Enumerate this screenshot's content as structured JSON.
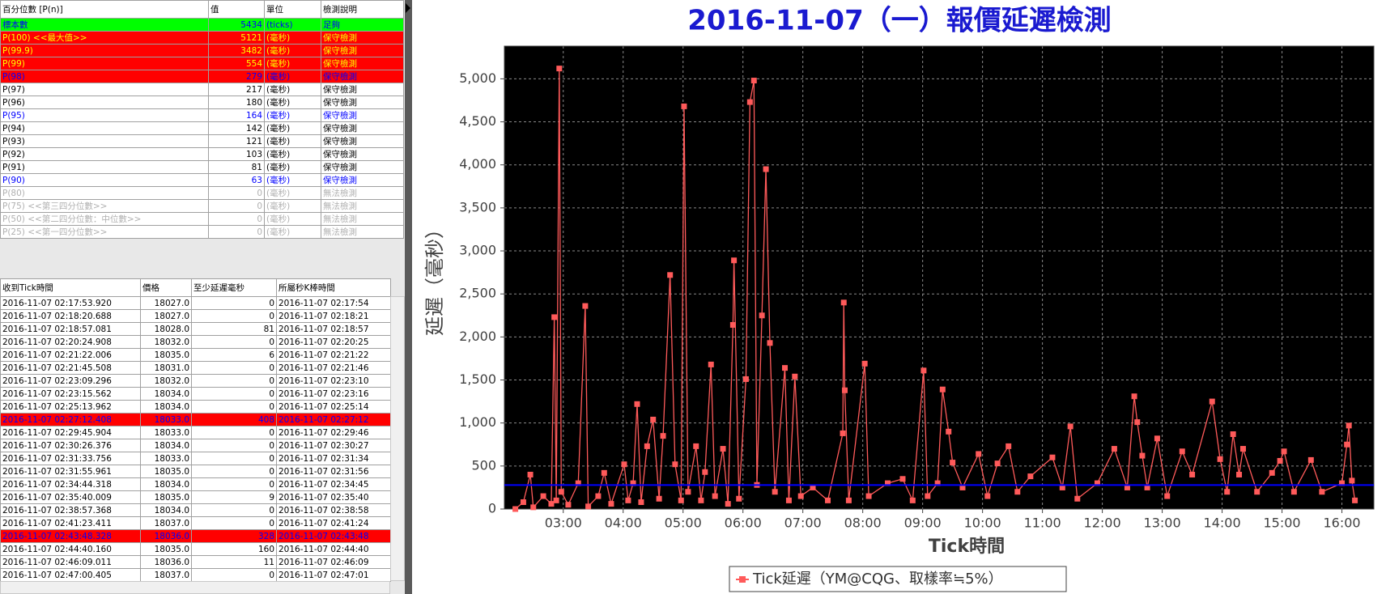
{
  "percentile_table": {
    "headers": [
      "百分位數 [P(n)]",
      "值",
      "單位",
      "檢測說明"
    ],
    "rows": [
      {
        "cells": [
          "標本數",
          "5434",
          "(ticks)",
          "足夠"
        ],
        "bg": "#00ff00",
        "fg": "#0000ff",
        "bold": false
      },
      {
        "cells": [
          "P(100)  <<最大值>>",
          "5121",
          "(毫秒)",
          "保守檢測"
        ],
        "bg": "#ff0000",
        "fg": "#ffff00",
        "bold": true
      },
      {
        "cells": [
          "P(99.9)",
          "3482",
          "(毫秒)",
          "保守檢測"
        ],
        "bg": "#ff0000",
        "fg": "#ffff00",
        "bold": true
      },
      {
        "cells": [
          "P(99)",
          "554",
          "(毫秒)",
          "保守檢測"
        ],
        "bg": "#ff0000",
        "fg": "#ffff00",
        "bold": true
      },
      {
        "cells": [
          "P(98)",
          "279",
          "(毫秒)",
          "保守檢測"
        ],
        "bg": "#ff0000",
        "fg": "#0000ff",
        "bold": false
      },
      {
        "cells": [
          "P(97)",
          "217",
          "(毫秒)",
          "保守檢測"
        ],
        "bg": "#ffffff",
        "fg": "#000000",
        "bold": false
      },
      {
        "cells": [
          "P(96)",
          "180",
          "(毫秒)",
          "保守檢測"
        ],
        "bg": "#ffffff",
        "fg": "#000000",
        "bold": false
      },
      {
        "cells": [
          "P(95)",
          "164",
          "(毫秒)",
          "保守檢測"
        ],
        "bg": "#ffffff",
        "fg": "#0000ff",
        "bold": true
      },
      {
        "cells": [
          "P(94)",
          "142",
          "(毫秒)",
          "保守檢測"
        ],
        "bg": "#ffffff",
        "fg": "#000000",
        "bold": false
      },
      {
        "cells": [
          "P(93)",
          "121",
          "(毫秒)",
          "保守檢測"
        ],
        "bg": "#ffffff",
        "fg": "#000000",
        "bold": false
      },
      {
        "cells": [
          "P(92)",
          "103",
          "(毫秒)",
          "保守檢測"
        ],
        "bg": "#ffffff",
        "fg": "#000000",
        "bold": false
      },
      {
        "cells": [
          "P(91)",
          "81",
          "(毫秒)",
          "保守檢測"
        ],
        "bg": "#ffffff",
        "fg": "#000000",
        "bold": false
      },
      {
        "cells": [
          "P(90)",
          "63",
          "(毫秒)",
          "保守檢測"
        ],
        "bg": "#ffffff",
        "fg": "#0000ff",
        "bold": true
      },
      {
        "cells": [
          "P(80)",
          "0",
          "(毫秒)",
          "無法檢測"
        ],
        "bg": "#ffffff",
        "fg": "#b0b0b0",
        "bold": false
      },
      {
        "cells": [
          "P(75)  <<第三四分位數>>",
          "0",
          "(毫秒)",
          "無法檢測"
        ],
        "bg": "#ffffff",
        "fg": "#b0b0b0",
        "bold": false
      },
      {
        "cells": [
          "P(50)  <<第二四分位數：中位數>>",
          "0",
          "(毫秒)",
          "無法檢測"
        ],
        "bg": "#ffffff",
        "fg": "#b0b0b0",
        "bold": false
      },
      {
        "cells": [
          "P(25)  <<第一四分位數>>",
          "0",
          "(毫秒)",
          "無法檢測"
        ],
        "bg": "#ffffff",
        "fg": "#b0b0b0",
        "bold": false
      }
    ]
  },
  "tick_table": {
    "headers": [
      "收到Tick時間",
      "價格",
      "至少延遲毫秒",
      "所屬秒K棒時間"
    ],
    "rows": [
      {
        "cells": [
          "2016-11-07 02:17:53.920",
          "18027.0",
          "0",
          "2016-11-07 02:17:54"
        ]
      },
      {
        "cells": [
          "2016-11-07 02:18:20.688",
          "18027.0",
          "0",
          "2016-11-07 02:18:21"
        ]
      },
      {
        "cells": [
          "2016-11-07 02:18:57.081",
          "18028.0",
          "81",
          "2016-11-07 02:18:57"
        ]
      },
      {
        "cells": [
          "2016-11-07 02:20:24.908",
          "18032.0",
          "0",
          "2016-11-07 02:20:25"
        ]
      },
      {
        "cells": [
          "2016-11-07 02:21:22.006",
          "18035.0",
          "6",
          "2016-11-07 02:21:22"
        ]
      },
      {
        "cells": [
          "2016-11-07 02:21:45.508",
          "18031.0",
          "0",
          "2016-11-07 02:21:46"
        ]
      },
      {
        "cells": [
          "2016-11-07 02:23:09.296",
          "18032.0",
          "0",
          "2016-11-07 02:23:10"
        ]
      },
      {
        "cells": [
          "2016-11-07 02:23:15.562",
          "18034.0",
          "0",
          "2016-11-07 02:23:16"
        ]
      },
      {
        "cells": [
          "2016-11-07 02:25:13.962",
          "18034.0",
          "0",
          "2016-11-07 02:25:14"
        ]
      },
      {
        "cells": [
          "2016-11-07 02:27:12.408",
          "18033.0",
          "408",
          "2016-11-07 02:27:12"
        ],
        "bg": "#ff0000",
        "fg": "#0000ff"
      },
      {
        "cells": [
          "2016-11-07 02:29:45.904",
          "18033.0",
          "0",
          "2016-11-07 02:29:46"
        ]
      },
      {
        "cells": [
          "2016-11-07 02:30:26.376",
          "18034.0",
          "0",
          "2016-11-07 02:30:27"
        ]
      },
      {
        "cells": [
          "2016-11-07 02:31:33.756",
          "18033.0",
          "0",
          "2016-11-07 02:31:34"
        ]
      },
      {
        "cells": [
          "2016-11-07 02:31:55.961",
          "18035.0",
          "0",
          "2016-11-07 02:31:56"
        ]
      },
      {
        "cells": [
          "2016-11-07 02:34:44.318",
          "18034.0",
          "0",
          "2016-11-07 02:34:45"
        ]
      },
      {
        "cells": [
          "2016-11-07 02:35:40.009",
          "18035.0",
          "9",
          "2016-11-07 02:35:40"
        ]
      },
      {
        "cells": [
          "2016-11-07 02:38:57.368",
          "18034.0",
          "0",
          "2016-11-07 02:38:58"
        ]
      },
      {
        "cells": [
          "2016-11-07 02:41:23.411",
          "18037.0",
          "0",
          "2016-11-07 02:41:24"
        ]
      },
      {
        "cells": [
          "2016-11-07 02:43:48.328",
          "18036.0",
          "328",
          "2016-11-07 02:43:48"
        ],
        "bg": "#ff0000",
        "fg": "#0000ff"
      },
      {
        "cells": [
          "2016-11-07 02:44:40.160",
          "18035.0",
          "160",
          "2016-11-07 02:44:40"
        ]
      },
      {
        "cells": [
          "2016-11-07 02:46:09.011",
          "18036.0",
          "11",
          "2016-11-07 02:46:09"
        ]
      },
      {
        "cells": [
          "2016-11-07 02:47:00.405",
          "18037.0",
          "0",
          "2016-11-07 02:47:01"
        ]
      }
    ]
  },
  "chart_data": {
    "type": "line",
    "title": "2016-11-07（一）報價延遲檢測",
    "y_label": "延遲（毫秒）",
    "x_label": "Tick時間",
    "x": [
      "02:12",
      "02:20",
      "02:27",
      "02:30",
      "02:40",
      "02:48",
      "02:51",
      "02:53",
      "02:56",
      "02:58",
      "03:05",
      "03:15",
      "03:22",
      "03:25",
      "03:35",
      "03:41",
      "03:48",
      "04:01",
      "04:05",
      "04:10",
      "04:14",
      "04:18",
      "04:24",
      "04:30",
      "04:36",
      "04:40",
      "04:47",
      "04:52",
      "04:58",
      "05:01",
      "05:05",
      "05:13",
      "05:18",
      "05:22",
      "05:28",
      "05:32",
      "05:40",
      "05:45",
      "05:50",
      "05:51",
      "05:56",
      "06:03",
      "06:07",
      "06:11",
      "06:14",
      "06:19",
      "06:23",
      "06:27",
      "06:32",
      "06:42",
      "06:46",
      "06:52",
      "06:58",
      "07:10",
      "07:25",
      "07:40",
      "07:41",
      "07:42",
      "07:46",
      "08:02",
      "08:06",
      "08:25",
      "08:40",
      "08:50",
      "09:01",
      "09:05",
      "09:15",
      "09:20",
      "09:26",
      "09:30",
      "09:40",
      "09:56",
      "10:05",
      "10:15",
      "10:26",
      "10:35",
      "10:48",
      "11:10",
      "11:20",
      "11:28",
      "11:35",
      "11:55",
      "12:12",
      "12:25",
      "12:32",
      "12:35",
      "12:40",
      "12:45",
      "12:55",
      "13:05",
      "13:20",
      "13:30",
      "13:50",
      "13:58",
      "14:05",
      "14:11",
      "14:17",
      "14:21",
      "14:35",
      "14:50",
      "14:58",
      "15:02",
      "15:12",
      "15:29",
      "15:40",
      "16:00",
      "16:05",
      "16:07",
      "16:10",
      "16:13"
    ],
    "series": [
      {
        "name": "Tick延遲（YM@CQG、取樣率≒5%）",
        "color": "#ff5a5a",
        "values": [
          0,
          80,
          400,
          20,
          150,
          60,
          2230,
          100,
          5120,
          200,
          50,
          300,
          2360,
          30,
          150,
          420,
          60,
          520,
          100,
          300,
          1220,
          80,
          730,
          1040,
          120,
          850,
          2720,
          520,
          100,
          4680,
          200,
          730,
          100,
          430,
          1680,
          150,
          700,
          60,
          2140,
          2890,
          120,
          1510,
          4730,
          4980,
          280,
          2250,
          3950,
          1930,
          200,
          1640,
          100,
          1540,
          150,
          250,
          100,
          880,
          2400,
          1380,
          100,
          1690,
          150,
          300,
          350,
          100,
          1610,
          150,
          300,
          1390,
          900,
          540,
          250,
          640,
          150,
          530,
          730,
          200,
          380,
          600,
          250,
          960,
          120,
          300,
          700,
          250,
          1310,
          1010,
          620,
          250,
          820,
          150,
          670,
          400,
          1250,
          580,
          200,
          870,
          400,
          700,
          200,
          420,
          560,
          670,
          200,
          570,
          200,
          300,
          750,
          970,
          330,
          100
        ]
      }
    ],
    "reference_line": {
      "value": 279,
      "color": "#0000ff"
    },
    "xlim": [
      "02:01",
      "16:32"
    ],
    "xticks": [
      "03:00",
      "04:00",
      "05:00",
      "06:00",
      "07:00",
      "08:00",
      "09:00",
      "10:00",
      "11:00",
      "12:00",
      "13:00",
      "14:00",
      "15:00",
      "16:00"
    ],
    "ylim": [
      0,
      5380
    ],
    "yticks": [
      0,
      500,
      {
        "value": 1000,
        "label": "1,000"
      },
      {
        "value": 1500,
        "label": "1,500"
      },
      {
        "value": 2000,
        "label": "2,000"
      },
      {
        "value": 2500,
        "label": "2,500"
      },
      {
        "value": 3000,
        "label": "3,000"
      },
      {
        "value": 3500,
        "label": "3,500"
      },
      {
        "value": 4000,
        "label": "4,000"
      },
      {
        "value": 4500,
        "label": "4,500"
      },
      {
        "value": 5000,
        "label": "5,000"
      }
    ],
    "grid": true,
    "plot_background": "#000000",
    "legend": "bottom"
  }
}
